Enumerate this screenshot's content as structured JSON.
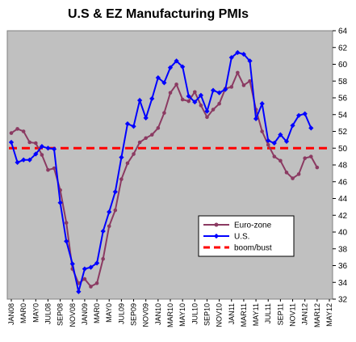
{
  "chart_data": {
    "type": "line",
    "title": "U.S & EZ Manufacturing PMIs",
    "xlabel": "",
    "ylabel": "",
    "ylim": [
      32,
      64
    ],
    "yticks": [
      32,
      34,
      36,
      38,
      40,
      42,
      44,
      46,
      48,
      50,
      52,
      54,
      56,
      58,
      60,
      62,
      64
    ],
    "yaxis_side": "right",
    "grid": false,
    "plot_background": "#c0c0c0",
    "legend_placement": "lower-right",
    "x_labels": [
      "JAN08",
      "MAR08",
      "MAY08",
      "JUL08",
      "SEP08",
      "NOV08",
      "JAN09",
      "MAR09",
      "MAY09",
      "JUL09",
      "SEP09",
      "NOV09",
      "JAN10",
      "MAR10",
      "MAY10",
      "JUL10",
      "SEP10",
      "NOV10",
      "JAN11",
      "MAR11",
      "MAY11",
      "JUL11",
      "SEP11",
      "NOV11",
      "JAN12",
      "MAR12",
      "MAY12"
    ],
    "x_label_texts": [
      "JAN08",
      "MAR0",
      "MAY0",
      "JUL08",
      "SEP08",
      "NOV08",
      "JAN09",
      "MAR0",
      "MAY0",
      "JUL09",
      "SEP09",
      "NOV09",
      "JAN10",
      "MAR10",
      "MAY10",
      "JUL10",
      "SEP10",
      "NOV10",
      "JAN11",
      "MAR11",
      "MAY11",
      "JUL11",
      "SEP11",
      "NOV11",
      "JAN12",
      "MAR12",
      "MAY12"
    ],
    "months": [
      "Jan 2008",
      "Feb 2008",
      "Mar 2008",
      "Apr 2008",
      "May 2008",
      "Jun 2008",
      "Jul 2008",
      "Aug 2008",
      "Sep 2008",
      "Oct 2008",
      "Nov 2008",
      "Dec 2008",
      "Jan 2009",
      "Feb 2009",
      "Mar 2009",
      "Apr 2009",
      "May 2009",
      "Jun 2009",
      "Jul 2009",
      "Aug 2009",
      "Sep 2009",
      "Oct 2009",
      "Nov 2009",
      "Dec 2009",
      "Jan 2010",
      "Feb 2010",
      "Mar 2010",
      "Apr 2010",
      "May 2010",
      "Jun 2010",
      "Jul 2010",
      "Aug 2010",
      "Sep 2010",
      "Oct 2010",
      "Nov 2010",
      "Dec 2010",
      "Jan 2011",
      "Feb 2011",
      "Mar 2011",
      "Apr 2011",
      "May 2011",
      "Jun 2011",
      "Jul 2011",
      "Aug 2011",
      "Sep 2011",
      "Oct 2011",
      "Nov 2011",
      "Dec 2011",
      "Jan 2012",
      "Feb 2012",
      "Mar 2012",
      "Apr 2012",
      "May 2012"
    ],
    "series": [
      {
        "name": "Euro-zone",
        "color": "#8b3a62",
        "values": [
          51.8,
          52.3,
          52.0,
          50.7,
          50.6,
          49.2,
          47.4,
          47.6,
          45.0,
          41.1,
          35.6,
          33.9,
          34.4,
          33.5,
          33.9,
          36.8,
          40.7,
          42.6,
          46.3,
          48.2,
          49.3,
          50.7,
          51.2,
          51.6,
          52.4,
          54.2,
          56.6,
          57.6,
          55.8,
          55.6,
          56.7,
          55.1,
          53.7,
          54.6,
          55.3,
          57.1,
          57.3,
          59.0,
          57.5,
          58.0,
          54.6,
          52.0,
          50.4,
          49.0,
          48.5,
          47.1,
          46.4,
          46.9,
          48.8,
          49.0,
          47.7
        ]
      },
      {
        "name": "U.S.",
        "color": "#0000ff",
        "values": [
          50.7,
          48.3,
          48.6,
          48.6,
          49.3,
          50.2,
          50.0,
          49.9,
          43.5,
          38.9,
          36.2,
          32.9,
          35.6,
          35.8,
          36.3,
          40.1,
          42.4,
          44.8,
          48.9,
          52.9,
          52.6,
          55.7,
          53.6,
          55.9,
          58.4,
          57.8,
          59.6,
          60.4,
          59.7,
          56.2,
          55.5,
          56.3,
          54.4,
          56.9,
          56.6,
          57.0,
          60.8,
          61.4,
          61.2,
          60.4,
          53.5,
          55.3,
          50.9,
          50.6,
          51.6,
          50.8,
          52.7,
          53.9,
          54.1,
          52.4
        ]
      }
    ],
    "reference_lines": [
      {
        "name": "boom/bust",
        "value": 50,
        "color": "#ff0000",
        "style": "dashed"
      }
    ]
  }
}
